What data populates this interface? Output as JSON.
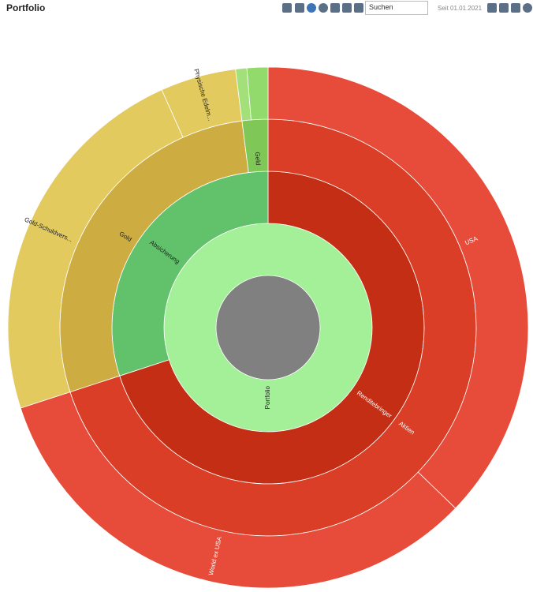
{
  "header": {
    "title": "Portfolio",
    "search_placeholder": "Suchen",
    "date_filter": "Seit 01.01.2021"
  },
  "chart_data": {
    "type": "sunburst",
    "root": {
      "name": "Portfolio",
      "value": 100,
      "color": "#a3f098",
      "children": [
        {
          "name": "Renditebringer",
          "value": 70,
          "color": "#c42e14",
          "children": [
            {
              "name": "Aktien",
              "value": 70,
              "color": "#da3e26",
              "children": [
                {
                  "name": "USA",
                  "value": 37.2,
                  "color": "#e74c3a"
                },
                {
                  "name": "World ex USA",
                  "value": 32.8,
                  "color": "#e74c3a"
                }
              ]
            }
          ]
        },
        {
          "name": "Absicherung",
          "value": 30,
          "color": "#61c26b",
          "children": [
            {
              "name": "Gold",
              "value": 28,
              "color": "#cdad42",
              "children": [
                {
                  "name": "Gold-Schuldvers...",
                  "value": 23.3,
                  "color": "#e3ca5f"
                },
                {
                  "name": "Physische Edelm...",
                  "value": 4.7,
                  "color": "#e3ca5f"
                }
              ]
            },
            {
              "name": "Geld",
              "value": 2,
              "color": "#7fc857",
              "children": [
                {
                  "name": null,
                  "value": 0.7,
                  "color": "#a4e07a"
                },
                {
                  "name": null,
                  "value": 1.3,
                  "color": "#93da6c"
                }
              ]
            }
          ]
        }
      ]
    }
  }
}
